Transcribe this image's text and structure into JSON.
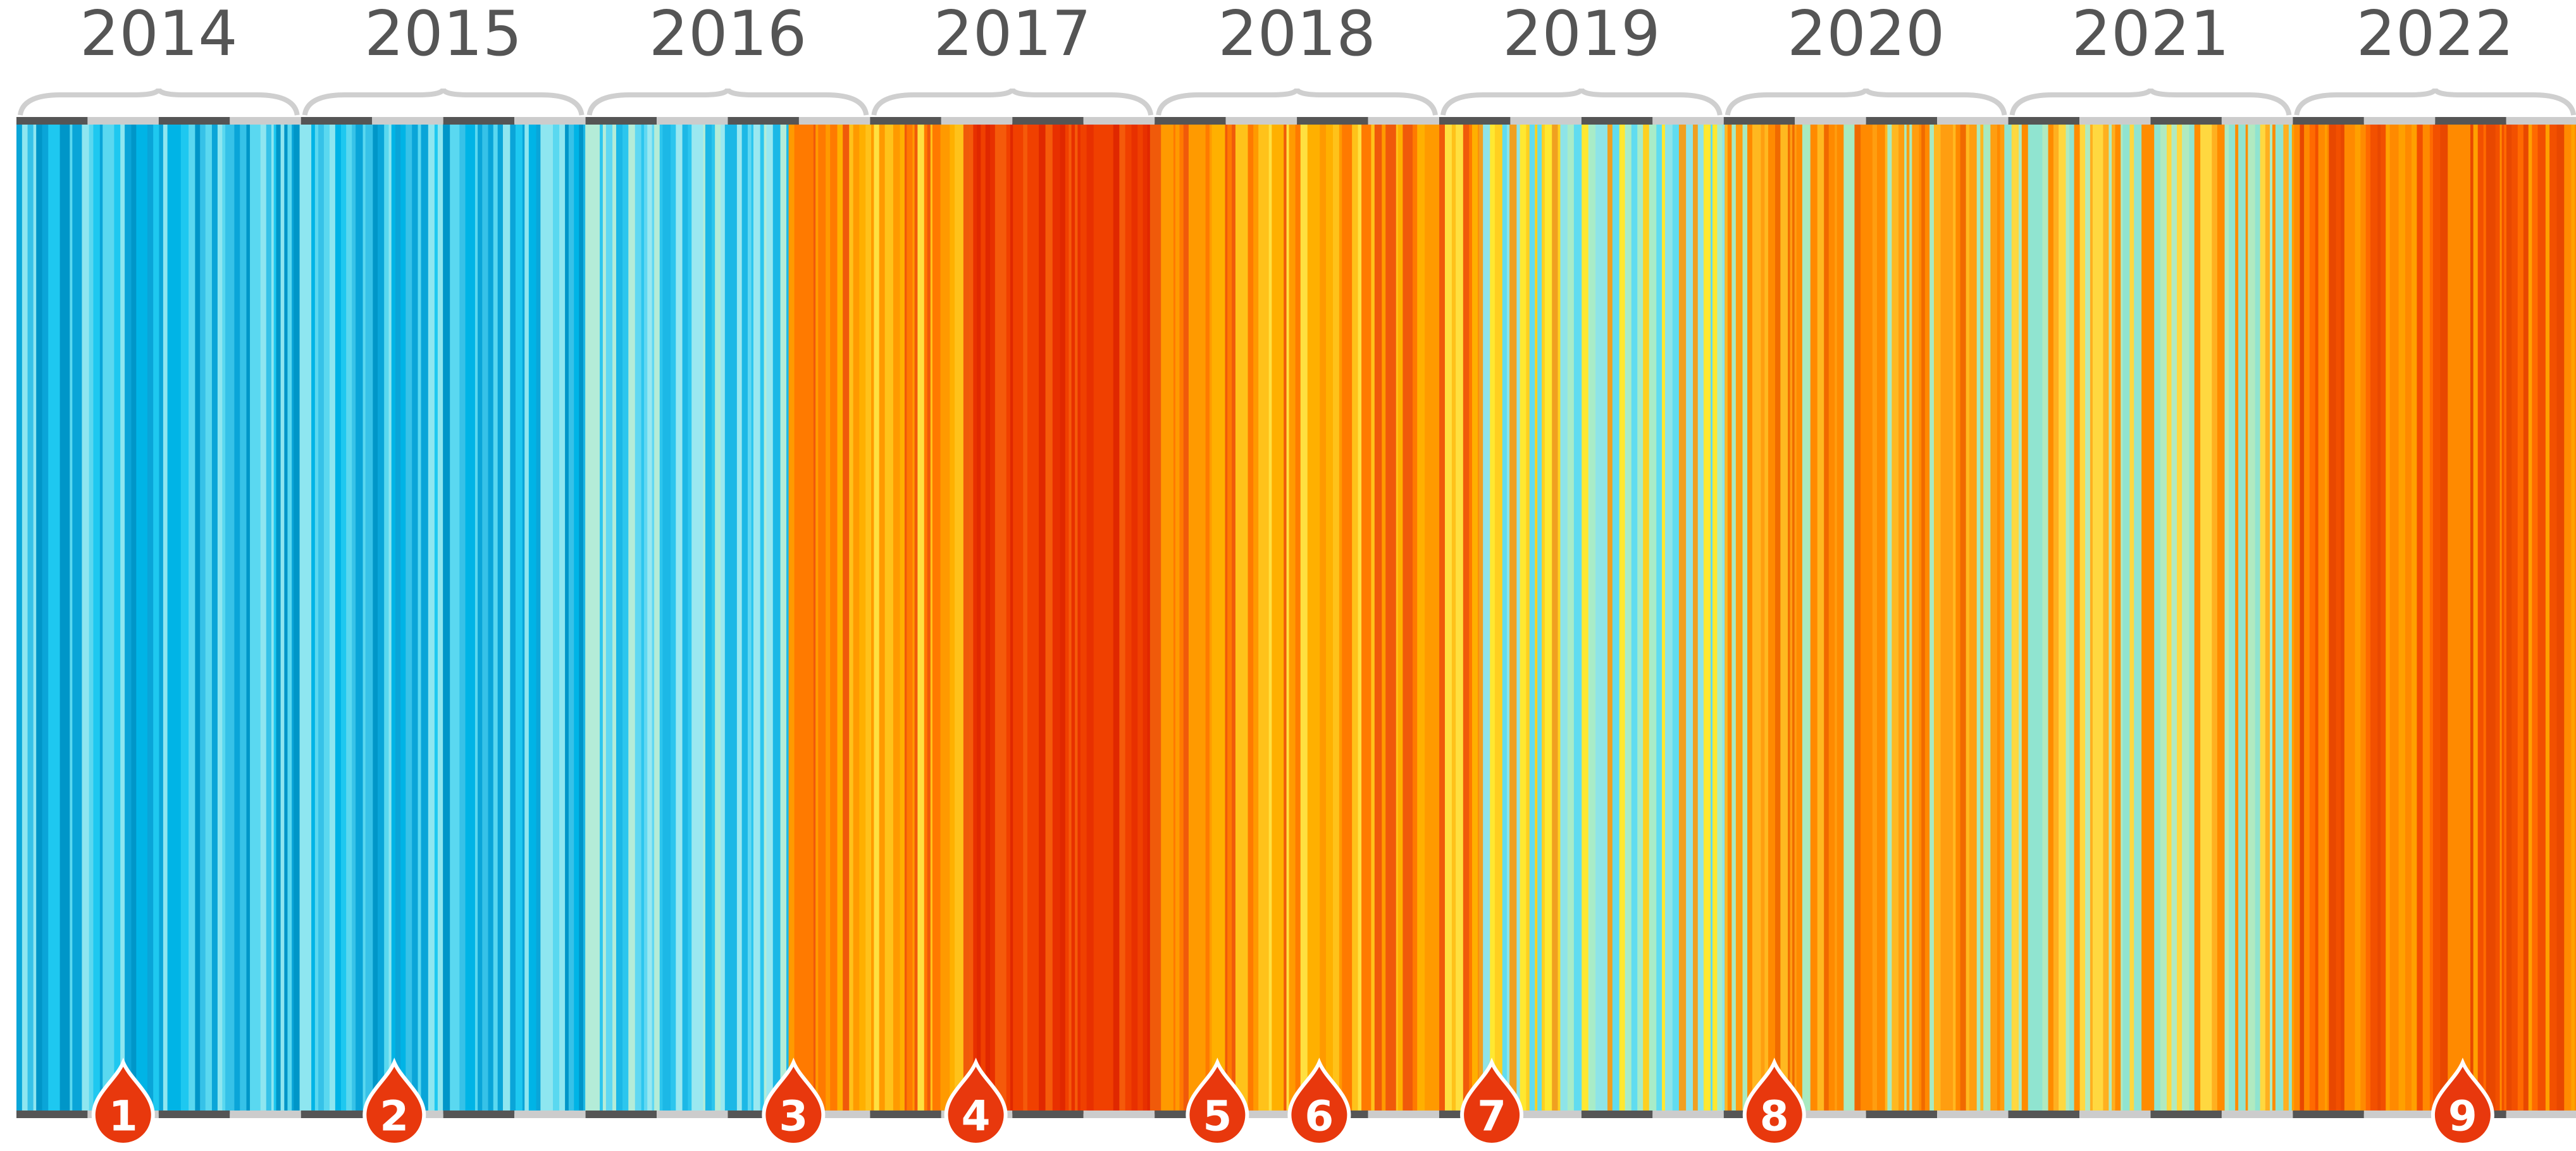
{
  "years": [
    "2014",
    "2015",
    "2016",
    "2017",
    "2018",
    "2019",
    "2020",
    "2021",
    "2022"
  ],
  "markers": [
    "1",
    "2",
    "3",
    "4",
    "5",
    "6",
    "7",
    "8",
    "9"
  ]
}
